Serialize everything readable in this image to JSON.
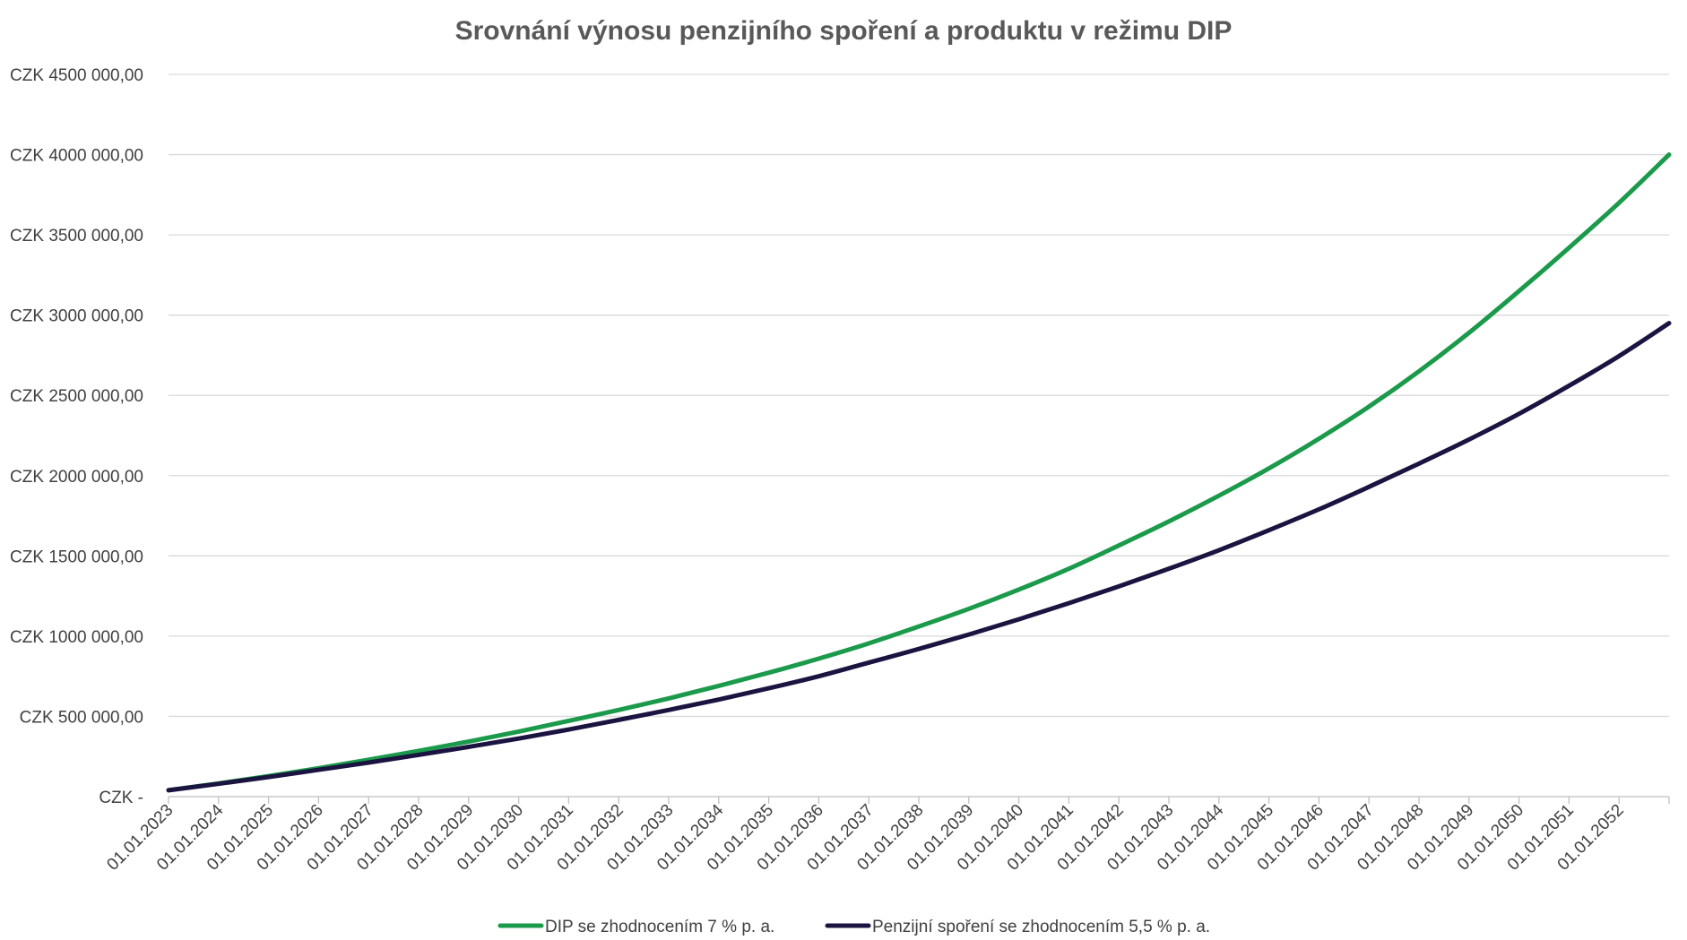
{
  "chart_data": {
    "type": "line",
    "title": "Srovnání výnosu penzijního spoření a produktu v režimu DIP",
    "xlabel": "",
    "ylabel": "",
    "ylim": [
      0,
      4500000
    ],
    "y_ticks": [
      {
        "value": 0,
        "label": "CZK -"
      },
      {
        "value": 500000,
        "label": "CZK 500 000,00"
      },
      {
        "value": 1000000,
        "label": "CZK 1000 000,00"
      },
      {
        "value": 1500000,
        "label": "CZK 1500 000,00"
      },
      {
        "value": 2000000,
        "label": "CZK 2000 000,00"
      },
      {
        "value": 2500000,
        "label": "CZK 2500 000,00"
      },
      {
        "value": 3000000,
        "label": "CZK 3000 000,00"
      },
      {
        "value": 3500000,
        "label": "CZK 3500 000,00"
      },
      {
        "value": 4000000,
        "label": "CZK 4000 000,00"
      },
      {
        "value": 4500000,
        "label": "CZK 4500 000,00"
      }
    ],
    "x_tick_labels": [
      "01.01.2023",
      "01.01.2024",
      "01.01.2025",
      "01.01.2026",
      "01.01.2027",
      "01.01.2028",
      "01.01.2029",
      "01.01.2030",
      "01.01.2031",
      "01.01.2032",
      "01.01.2033",
      "01.01.2034",
      "01.01.2035",
      "01.01.2036",
      "01.01.2037",
      "01.01.2038",
      "01.01.2039",
      "01.01.2040",
      "01.01.2041",
      "01.01.2042",
      "01.01.2043",
      "01.01.2044",
      "01.01.2045",
      "01.01.2046",
      "01.01.2047",
      "01.01.2048",
      "01.01.2049",
      "01.01.2050",
      "01.01.2051",
      "01.01.2052"
    ],
    "x_range": [
      "01.01.2023",
      "01.01.2053"
    ],
    "x": [
      "01.01.2023",
      "01.01.2024",
      "01.01.2025",
      "01.01.2026",
      "01.01.2027",
      "01.01.2028",
      "01.01.2029",
      "01.01.2030",
      "01.01.2031",
      "01.01.2032",
      "01.01.2033",
      "01.01.2034",
      "01.01.2035",
      "01.01.2036",
      "01.01.2037",
      "01.01.2038",
      "01.01.2039",
      "01.01.2040",
      "01.01.2041",
      "01.01.2042",
      "01.01.2043",
      "01.01.2044",
      "01.01.2045",
      "01.01.2046",
      "01.01.2047",
      "01.01.2048",
      "01.01.2049",
      "01.01.2050",
      "01.01.2051",
      "01.01.2052",
      "01.01.2053"
    ],
    "series": [
      {
        "name": "DIP se zhodnocením 7 % p. a.",
        "color": "#1a9a4a",
        "values": [
          40000,
          82000,
          128000,
          177000,
          230000,
          285000,
          343000,
          405000,
          472000,
          540000,
          612000,
          690000,
          772000,
          860000,
          955000,
          1060000,
          1170000,
          1290000,
          1420000,
          1565000,
          1715000,
          1875000,
          2045000,
          2230000,
          2430000,
          2650000,
          2890000,
          3150000,
          3420000,
          3700000,
          4000000
        ]
      },
      {
        "name": "Penzijní spoření se zhodnocením 5,5 % p. a.",
        "color": "#1b1340",
        "values": [
          40000,
          80000,
          122000,
          167000,
          212000,
          260000,
          310000,
          362000,
          418000,
          478000,
          540000,
          605000,
          675000,
          750000,
          835000,
          920000,
          1010000,
          1105000,
          1205000,
          1310000,
          1420000,
          1535000,
          1660000,
          1790000,
          1930000,
          2075000,
          2225000,
          2385000,
          2560000,
          2745000,
          2950000
        ]
      }
    ],
    "grid": true,
    "legend_position": "bottom"
  }
}
